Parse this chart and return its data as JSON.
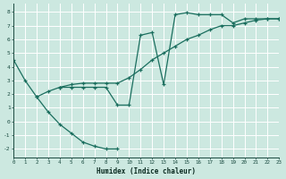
{
  "xlabel": "Humidex (Indice chaleur)",
  "xlim": [
    0,
    23
  ],
  "ylim": [
    -2.6,
    8.6
  ],
  "xticks": [
    0,
    1,
    2,
    3,
    4,
    5,
    6,
    7,
    8,
    9,
    10,
    11,
    12,
    13,
    14,
    15,
    16,
    17,
    18,
    19,
    20,
    21,
    22,
    23
  ],
  "yticks": [
    -2,
    -1,
    0,
    1,
    2,
    3,
    4,
    5,
    6,
    7,
    8
  ],
  "bg_color": "#cce8e0",
  "grid_color": "#ffffff",
  "line_color": "#1a6e5e",
  "lines": [
    {
      "x": [
        0,
        1,
        2,
        3,
        4,
        5,
        6,
        7,
        8,
        9
      ],
      "y": [
        4.5,
        3.0,
        1.8,
        0.7,
        -0.2,
        -0.85,
        -1.5,
        -1.8,
        -2.0,
        -2.0
      ]
    },
    {
      "x": [
        2,
        3,
        4,
        5,
        6,
        7,
        8,
        9,
        10,
        11,
        12,
        13,
        14,
        15,
        16,
        17,
        18,
        19,
        20,
        21,
        22,
        23
      ],
      "y": [
        1.8,
        2.2,
        2.5,
        2.7,
        2.8,
        2.8,
        2.8,
        2.8,
        3.2,
        3.8,
        4.5,
        5.0,
        5.5,
        6.0,
        6.3,
        6.7,
        7.0,
        7.0,
        7.2,
        7.4,
        7.5,
        7.5
      ]
    },
    {
      "x": [
        4,
        5,
        6,
        7,
        8,
        9,
        10,
        11,
        12,
        13,
        14,
        15,
        16,
        17,
        18,
        19,
        20,
        21,
        22,
        23
      ],
      "y": [
        2.5,
        2.5,
        2.5,
        2.5,
        2.5,
        1.2,
        1.2,
        6.3,
        6.5,
        2.7,
        7.8,
        7.95,
        7.8,
        7.8,
        7.8,
        7.2,
        7.5,
        7.5,
        7.5,
        7.5
      ]
    }
  ]
}
